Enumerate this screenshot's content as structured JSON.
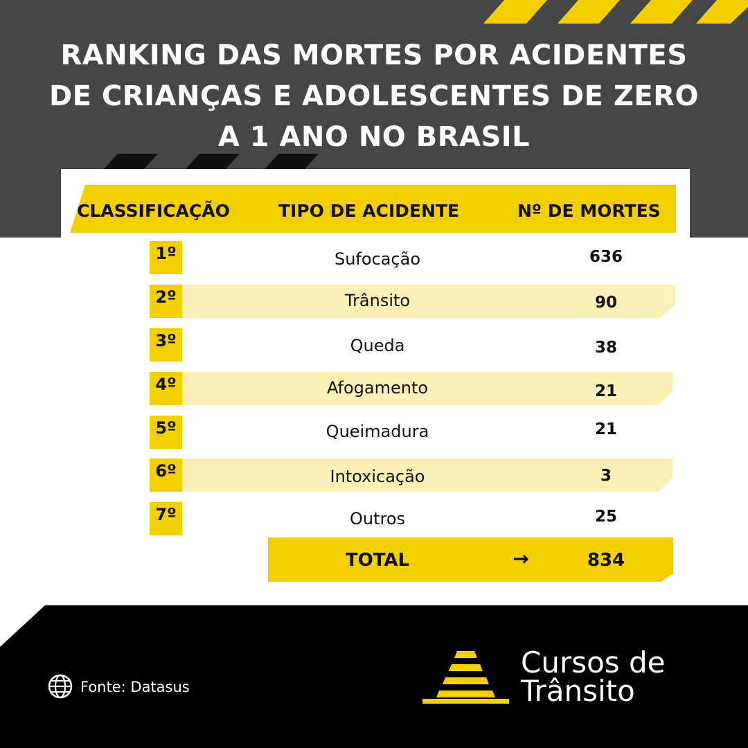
{
  "title_lines": [
    "RANKING DAS MORTES POR ACIDENTES",
    "DE CRIANÇAS E ADOLESCENTES DE ZERO",
    "A 1 ANO NO BRASIL"
  ],
  "table": {
    "headers": [
      "CLASSIFICAÇÃO",
      "TIPO DE ACIDENTE",
      "Nº DE MORTES"
    ],
    "rows": [
      {
        "rank": "1º",
        "type": "Sufocação",
        "deaths": "636"
      },
      {
        "rank": "2º",
        "type": "Trânsito",
        "deaths": "90"
      },
      {
        "rank": "3º",
        "type": "Queda",
        "deaths": "38"
      },
      {
        "rank": "4º",
        "type": "Afogamento",
        "deaths": "21"
      },
      {
        "rank": "5º",
        "type": "Queimadura",
        "deaths": "21"
      },
      {
        "rank": "6º",
        "type": "Intoxicação",
        "deaths": "3"
      },
      {
        "rank": "7º",
        "type": "Outros",
        "deaths": "25"
      }
    ],
    "total": {
      "label": "TOTAL",
      "arrow": "→",
      "value": "834"
    }
  },
  "footer": {
    "source": "Fonte: Datasus",
    "source_icon": "globe-icon",
    "brand_line1": "Cursos de",
    "brand_line2": "Trânsito"
  },
  "colors": {
    "accent": "#f2cf00",
    "dark": "#464646",
    "stripe": "#fbf0b6"
  }
}
